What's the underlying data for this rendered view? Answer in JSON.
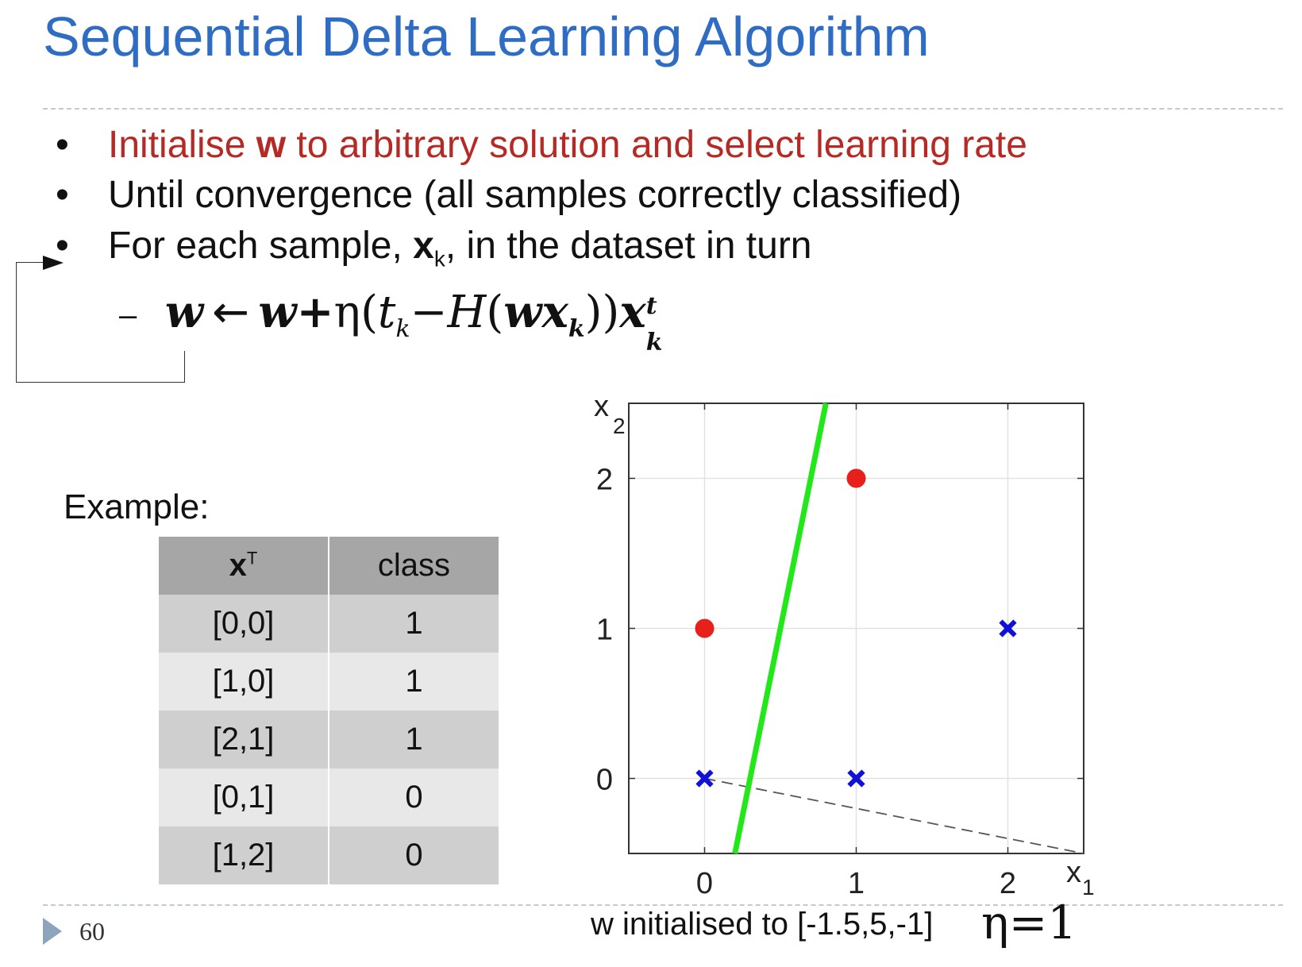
{
  "slide": {
    "title": "Sequential Delta Learning Algorithm",
    "page_number": "60"
  },
  "bullets": {
    "b1_pre": "Initialise ",
    "b1_bold": "w",
    "b1_post": " to arbitrary solution and select learning rate",
    "b2": "Until convergence (all samples correctly classified)",
    "b3_pre": "For each sample, ",
    "b3_bold": "x",
    "b3_sub": "k",
    "b3_post": ", in the dataset in turn",
    "dash": "–"
  },
  "example": {
    "label": "Example:",
    "col1_bold": "x",
    "col1_sup": "T",
    "col2": "class",
    "rows": [
      {
        "x": "[0,0]",
        "cls": "1"
      },
      {
        "x": "[1,0]",
        "cls": "1"
      },
      {
        "x": "[2,1]",
        "cls": "1"
      },
      {
        "x": "[0,1]",
        "cls": "0"
      },
      {
        "x": "[1,2]",
        "cls": "0"
      }
    ]
  },
  "caption": {
    "text": "w initialised to [-1.5,5,-1]",
    "eta": "η=1"
  },
  "chart_data": {
    "type": "scatter",
    "xlabel": "x1",
    "ylabel": "x2",
    "xlim": [
      -0.5,
      2.5
    ],
    "ylim": [
      -0.5,
      2.5
    ],
    "xticks": [
      "0",
      "1",
      "2"
    ],
    "yticks": [
      "0",
      "1",
      "2"
    ],
    "grid": true,
    "series": [
      {
        "marker": "circle",
        "color": "#e8201c",
        "points": [
          [
            0,
            1
          ],
          [
            1,
            2
          ]
        ]
      },
      {
        "marker": "x",
        "color": "#1010d8",
        "points": [
          [
            0,
            0
          ],
          [
            1,
            0
          ],
          [
            2,
            1
          ]
        ]
      }
    ],
    "decision_boundary": {
      "color": "#22e81a",
      "points": [
        [
          0.2,
          -0.5
        ],
        [
          0.8,
          2.5
        ]
      ]
    },
    "weight_vector": {
      "style": "dashed",
      "color": "#555555",
      "from": [
        0,
        0
      ],
      "to": [
        2.5,
        -0.5
      ]
    }
  }
}
